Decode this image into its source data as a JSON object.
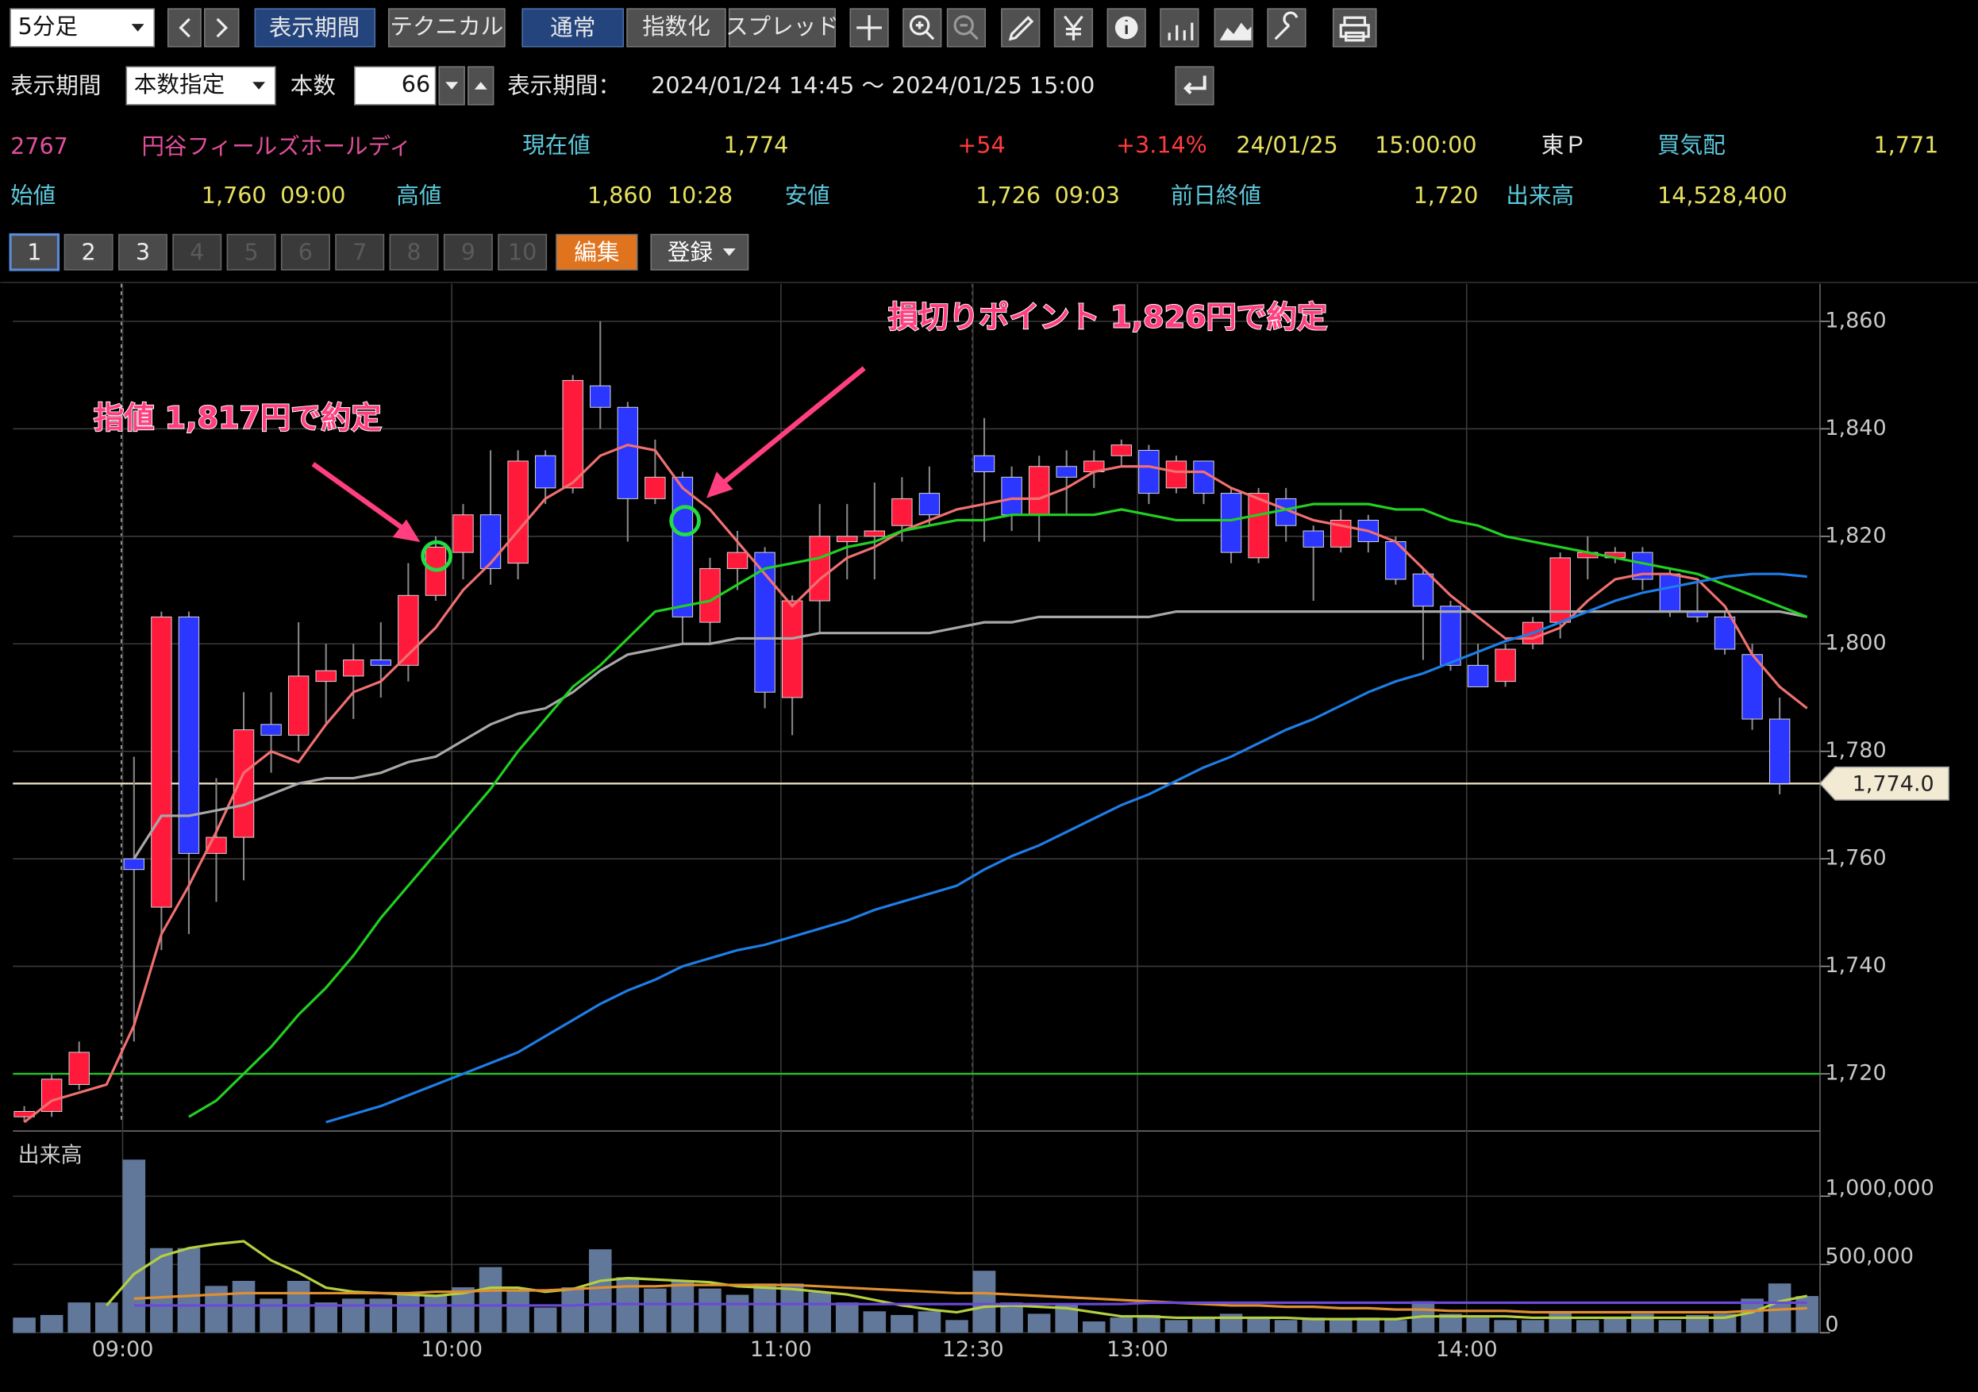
{
  "toolbar": {
    "timeframe": "5分足",
    "buttons": [
      "表示期間",
      "テクニカル",
      "通常",
      "指数化",
      "スプレッド"
    ]
  },
  "controls": {
    "period_label": "表示期間",
    "period_mode": "本数指定",
    "count_label": "本数",
    "count": "66",
    "range_label": "表示期間：",
    "range": "2024/01/24 14:45 ～ 2024/01/25 15:00"
  },
  "quote": {
    "code": "2767",
    "name": "円谷フィールズホールディ",
    "current_label": "現在値",
    "current": "1,774",
    "change": "+54",
    "change_pct": "+3.14%",
    "date": "24/01/25",
    "time": "15:00:00",
    "market": "東Ｐ",
    "bid_label": "買気配",
    "bid": "1,771"
  },
  "stats": [
    {
      "label": "始値",
      "value": "1,760",
      "time": "09:00"
    },
    {
      "label": "高値",
      "value": "1,860",
      "time": "10:28"
    },
    {
      "label": "安値",
      "value": "1,726",
      "time": "09:03"
    }
  ],
  "prev_close": {
    "label": "前日終値",
    "value": "1,720"
  },
  "volume_total": {
    "label": "出来高",
    "value": "14,528,400"
  },
  "tabs": [
    "1",
    "2",
    "3",
    "4",
    "5",
    "6",
    "7",
    "8",
    "9",
    "10"
  ],
  "tab_buttons": [
    "編集",
    "登録"
  ],
  "chart_data": {
    "type": "candlestick",
    "categories": [
      null,
      null,
      null,
      null,
      "09:00",
      null,
      null,
      null,
      null,
      null,
      null,
      null,
      null,
      null,
      null,
      null,
      "10:00",
      null,
      null,
      null,
      null,
      null,
      null,
      null,
      null,
      null,
      null,
      null,
      "11:00",
      null,
      null,
      null,
      null,
      null,
      null,
      "12:30",
      null,
      null,
      null,
      null,
      null,
      "13:00",
      null,
      null,
      null,
      null,
      null,
      null,
      null,
      null,
      null,
      null,
      null,
      "14:00",
      null,
      null,
      null,
      null,
      null,
      null,
      null,
      null,
      null,
      null,
      null,
      null
    ],
    "open": [
      1712,
      1713,
      1718,
      null,
      1760,
      1751,
      1805,
      1761,
      1764,
      1785,
      1783,
      1793,
      1794,
      1797,
      1796,
      1809,
      1817,
      1824,
      1815,
      1835,
      1829,
      1848,
      1844,
      1827,
      1831,
      1804,
      1814,
      1817,
      1790,
      1808,
      1819,
      1820,
      1822,
      1828,
      null,
      1835,
      1831,
      1824,
      1833,
      1832,
      1835,
      1836,
      1829,
      1834,
      1828,
      1816,
      1827,
      1821,
      1818,
      1823,
      1819,
      1813,
      1807,
      1796,
      1793,
      1800,
      1804,
      1816,
      1816,
      1817,
      1813,
      1806,
      1805,
      1798,
      1786,
      null
    ],
    "high": [
      1714,
      1720,
      1726,
      null,
      1779,
      1806,
      1806,
      1775,
      1791,
      1791,
      1804,
      1800,
      1800,
      1804,
      1815,
      1820,
      1826,
      1836,
      1836,
      1836,
      1850,
      1860,
      1845,
      1838,
      1832,
      1816,
      1821,
      1818,
      1809,
      1826,
      1826,
      1830,
      1831,
      1833,
      null,
      1842,
      1833,
      1835,
      1836,
      1836,
      1838,
      1837,
      1835,
      1834,
      1829,
      1829,
      1829,
      1822,
      1825,
      1824,
      1820,
      1814,
      1808,
      1800,
      1800,
      1805,
      1817,
      1820,
      1818,
      1818,
      1814,
      1812,
      1806,
      1800,
      1790,
      null
    ],
    "low": [
      1711,
      1712,
      1717,
      null,
      1726,
      1743,
      1746,
      1752,
      1756,
      1776,
      1780,
      1785,
      1786,
      1790,
      1793,
      1808,
      1812,
      1811,
      1812,
      1826,
      1828,
      1840,
      1819,
      1826,
      1800,
      1800,
      1810,
      1788,
      1783,
      1802,
      1812,
      1812,
      1819,
      1822,
      null,
      1819,
      1821,
      1819,
      1824,
      1829,
      1833,
      1826,
      1828,
      1826,
      1815,
      1815,
      1819,
      1808,
      1817,
      1817,
      1811,
      1797,
      1795,
      1792,
      1792,
      1799,
      1801,
      1812,
      1815,
      1810,
      1805,
      1804,
      1798,
      1784,
      1772,
      null
    ],
    "close": [
      1713,
      1719,
      1724,
      null,
      1758,
      1805,
      1761,
      1764,
      1784,
      1783,
      1794,
      1795,
      1797,
      1796,
      1809,
      1818,
      1824,
      1814,
      1834,
      1829,
      1849,
      1844,
      1827,
      1831,
      1805,
      1814,
      1817,
      1791,
      1808,
      1820,
      1820,
      1821,
      1827,
      1824,
      null,
      1832,
      1824,
      1833,
      1831,
      1834,
      1837,
      1828,
      1834,
      1828,
      1817,
      1828,
      1822,
      1818,
      1823,
      1819,
      1812,
      1807,
      1796,
      1792,
      1799,
      1804,
      1816,
      1817,
      1817,
      1812,
      1806,
      1805,
      1799,
      1786,
      1774,
      null
    ],
    "up_color": "#ff1a3c",
    "down_color": "#2b36ff",
    "series": [
      {
        "color": "#f07070",
        "values": [
          1711,
          1715,
          1716.5,
          1718,
          1729,
          1746,
          1755,
          1765,
          1776,
          1780,
          1778,
          1785,
          1791,
          1793,
          1798,
          1803,
          1810,
          1815,
          1821,
          1827,
          1830,
          1835,
          1837,
          1836,
          1829,
          1825,
          1819,
          1813,
          1807,
          1812,
          1816,
          1818,
          1821,
          1823,
          1825,
          1826,
          1827,
          1827,
          1829,
          1832,
          1833,
          1833,
          1832,
          1832,
          1829,
          1827,
          1825,
          1823,
          1822,
          1821,
          1819,
          1814,
          1809,
          1805,
          1801,
          1801,
          1803,
          1808,
          1812,
          1813,
          1813,
          1812,
          1807,
          1798,
          1792,
          1788
        ]
      },
      {
        "color": "#a8a8a8",
        "values": [
          null,
          null,
          null,
          null,
          1760,
          1768,
          1768,
          1769,
          1770,
          1772,
          1774,
          1775,
          1775,
          1776,
          1778,
          1779,
          1782,
          1785,
          1787,
          1788,
          1791,
          1795,
          1798,
          1799,
          1800,
          1800,
          1801,
          1801,
          1801,
          1802,
          1802,
          1802,
          1802,
          1802,
          1803,
          1804,
          1804,
          1805,
          1805,
          1805,
          1805,
          1805,
          1806,
          1806,
          1806,
          1806,
          1806,
          1806,
          1806,
          1806,
          1806,
          1806,
          1806,
          1806,
          1806,
          1806,
          1806,
          1806,
          1806,
          1806,
          1806,
          1806,
          1806,
          1806,
          1806,
          1805
        ]
      },
      {
        "color": "#22d022",
        "values": [
          null,
          null,
          null,
          null,
          null,
          null,
          1712,
          1715,
          1720,
          1725,
          1731,
          1736,
          1742,
          1749,
          1755,
          1761,
          1767,
          1773,
          1780,
          1786,
          1792,
          1796,
          1801,
          1806,
          1807,
          1808,
          1811,
          1814,
          1815,
          1816,
          1818,
          1819,
          1821,
          1822,
          1823,
          1823,
          1824,
          1824,
          1824,
          1824,
          1825,
          1824,
          1823,
          1823,
          1823,
          1824,
          1825,
          1826,
          1826,
          1826,
          1825,
          1825,
          1823,
          1822,
          1820,
          1819,
          1818,
          1817,
          1816,
          1815,
          1814,
          1813,
          1811,
          1809,
          1807,
          1805
        ]
      },
      {
        "color": "#1e7ee8",
        "values": [
          null,
          null,
          null,
          null,
          null,
          null,
          null,
          null,
          null,
          null,
          null,
          1711,
          1712.5,
          1714,
          1716,
          1718,
          1720,
          1722,
          1724,
          1727,
          1730,
          1733,
          1735.5,
          1737.5,
          1740,
          1741.5,
          1743,
          1744,
          1745.5,
          1747,
          1748.5,
          1750.5,
          1752,
          1753.5,
          1755,
          1758,
          1760.5,
          1762.5,
          1765,
          1767.5,
          1770,
          1772,
          1774.5,
          1777,
          1779,
          1781.5,
          1784,
          1786,
          1788.5,
          1791,
          1793,
          1794.5,
          1796.5,
          1798.5,
          1800.5,
          1802,
          1804,
          1806,
          1808,
          1809.5,
          1810.5,
          1811.5,
          1812.5,
          1813,
          1813,
          1812.5
        ]
      }
    ],
    "ylim": [
      1711,
      1867
    ],
    "yticks": [
      {
        "value": 1720,
        "label": "1,720"
      },
      {
        "value": 1740,
        "label": "1,740"
      },
      {
        "value": 1760,
        "label": "1,760"
      },
      {
        "value": 1780,
        "label": "1,780"
      },
      {
        "value": 1800,
        "label": "1,800"
      },
      {
        "value": 1820,
        "label": "1,820"
      },
      {
        "value": 1840,
        "label": "1,840"
      },
      {
        "value": 1860,
        "label": "1,860"
      }
    ],
    "grid": true,
    "reference_lines": [
      {
        "value": 1720,
        "color": "#22c422"
      },
      {
        "value": 1774,
        "color": "#e8dcc0"
      }
    ],
    "last_price": {
      "value": 1774,
      "label": "1,774.0"
    },
    "annotations": [
      {
        "text": "指値 1,817円で約定"
      },
      {
        "text": "損切りポイント 1,826円で約定"
      }
    ],
    "volume": {
      "label": "出来高",
      "color": "#62789a",
      "values": [
        111000,
        130000,
        222000,
        222000,
        1268000,
        620000,
        620000,
        343000,
        380000,
        250000,
        380000,
        222000,
        250000,
        250000,
        278000,
        278000,
        333000,
        481000,
        315000,
        185000,
        333000,
        611000,
        407000,
        324000,
        380000,
        324000,
        278000,
        361000,
        361000,
        296000,
        222000,
        157000,
        130000,
        157000,
        93000,
        454000,
        222000,
        139000,
        204000,
        83000,
        111000,
        130000,
        93000,
        111000,
        139000,
        111000,
        93000,
        111000,
        93000,
        111000,
        93000,
        231000,
        139000,
        111000,
        93000,
        93000,
        157000,
        93000,
        111000,
        139000,
        93000,
        130000,
        139000,
        250000,
        361000,
        269000
      ],
      "series": [
        {
          "color": "#b4d040",
          "values": [
            null,
            null,
            null,
            200000,
            430000,
            560000,
            620000,
            650000,
            670000,
            530000,
            440000,
            330000,
            300000,
            290000,
            280000,
            270000,
            290000,
            330000,
            330000,
            300000,
            320000,
            380000,
            400000,
            390000,
            380000,
            370000,
            340000,
            330000,
            320000,
            300000,
            280000,
            240000,
            200000,
            170000,
            150000,
            190000,
            200000,
            190000,
            180000,
            150000,
            120000,
            120000,
            110000,
            110000,
            110000,
            110000,
            110000,
            100000,
            100000,
            100000,
            100000,
            120000,
            120000,
            120000,
            120000,
            110000,
            110000,
            110000,
            110000,
            110000,
            110000,
            110000,
            110000,
            150000,
            230000,
            270000
          ]
        },
        {
          "color": "#e09030",
          "values": [
            null,
            null,
            null,
            null,
            250000,
            260000,
            270000,
            280000,
            290000,
            290000,
            290000,
            290000,
            290000,
            290000,
            290000,
            300000,
            300000,
            310000,
            310000,
            310000,
            320000,
            330000,
            340000,
            340000,
            350000,
            350000,
            350000,
            350000,
            350000,
            340000,
            330000,
            320000,
            310000,
            300000,
            290000,
            290000,
            280000,
            270000,
            260000,
            250000,
            240000,
            230000,
            220000,
            210000,
            200000,
            200000,
            190000,
            190000,
            180000,
            180000,
            170000,
            170000,
            160000,
            160000,
            160000,
            150000,
            150000,
            150000,
            150000,
            150000,
            150000,
            150000,
            150000,
            160000,
            170000,
            180000
          ]
        },
        {
          "color": "#6a4ad8",
          "values": [
            null,
            null,
            null,
            null,
            200000,
            200000,
            200000,
            200000,
            200000,
            200000,
            200000,
            200000,
            200000,
            200000,
            200000,
            200000,
            200000,
            200000,
            200000,
            200000,
            200000,
            210000,
            210000,
            210000,
            210000,
            210000,
            210000,
            210000,
            210000,
            210000,
            210000,
            210000,
            210000,
            210000,
            210000,
            210000,
            210000,
            210000,
            210000,
            210000,
            210000,
            220000,
            220000,
            220000,
            220000,
            220000,
            220000,
            220000,
            220000,
            220000,
            220000,
            220000,
            220000,
            220000,
            220000,
            220000,
            220000,
            220000,
            220000,
            220000,
            220000,
            220000,
            220000,
            220000,
            220000,
            220000
          ]
        }
      ],
      "ylim": [
        0,
        1450000
      ],
      "yticks": [
        0,
        {
          "value": 500000,
          "label": "500,000"
        },
        {
          "value": 1000000,
          "label": "1,000,000"
        }
      ]
    }
  }
}
